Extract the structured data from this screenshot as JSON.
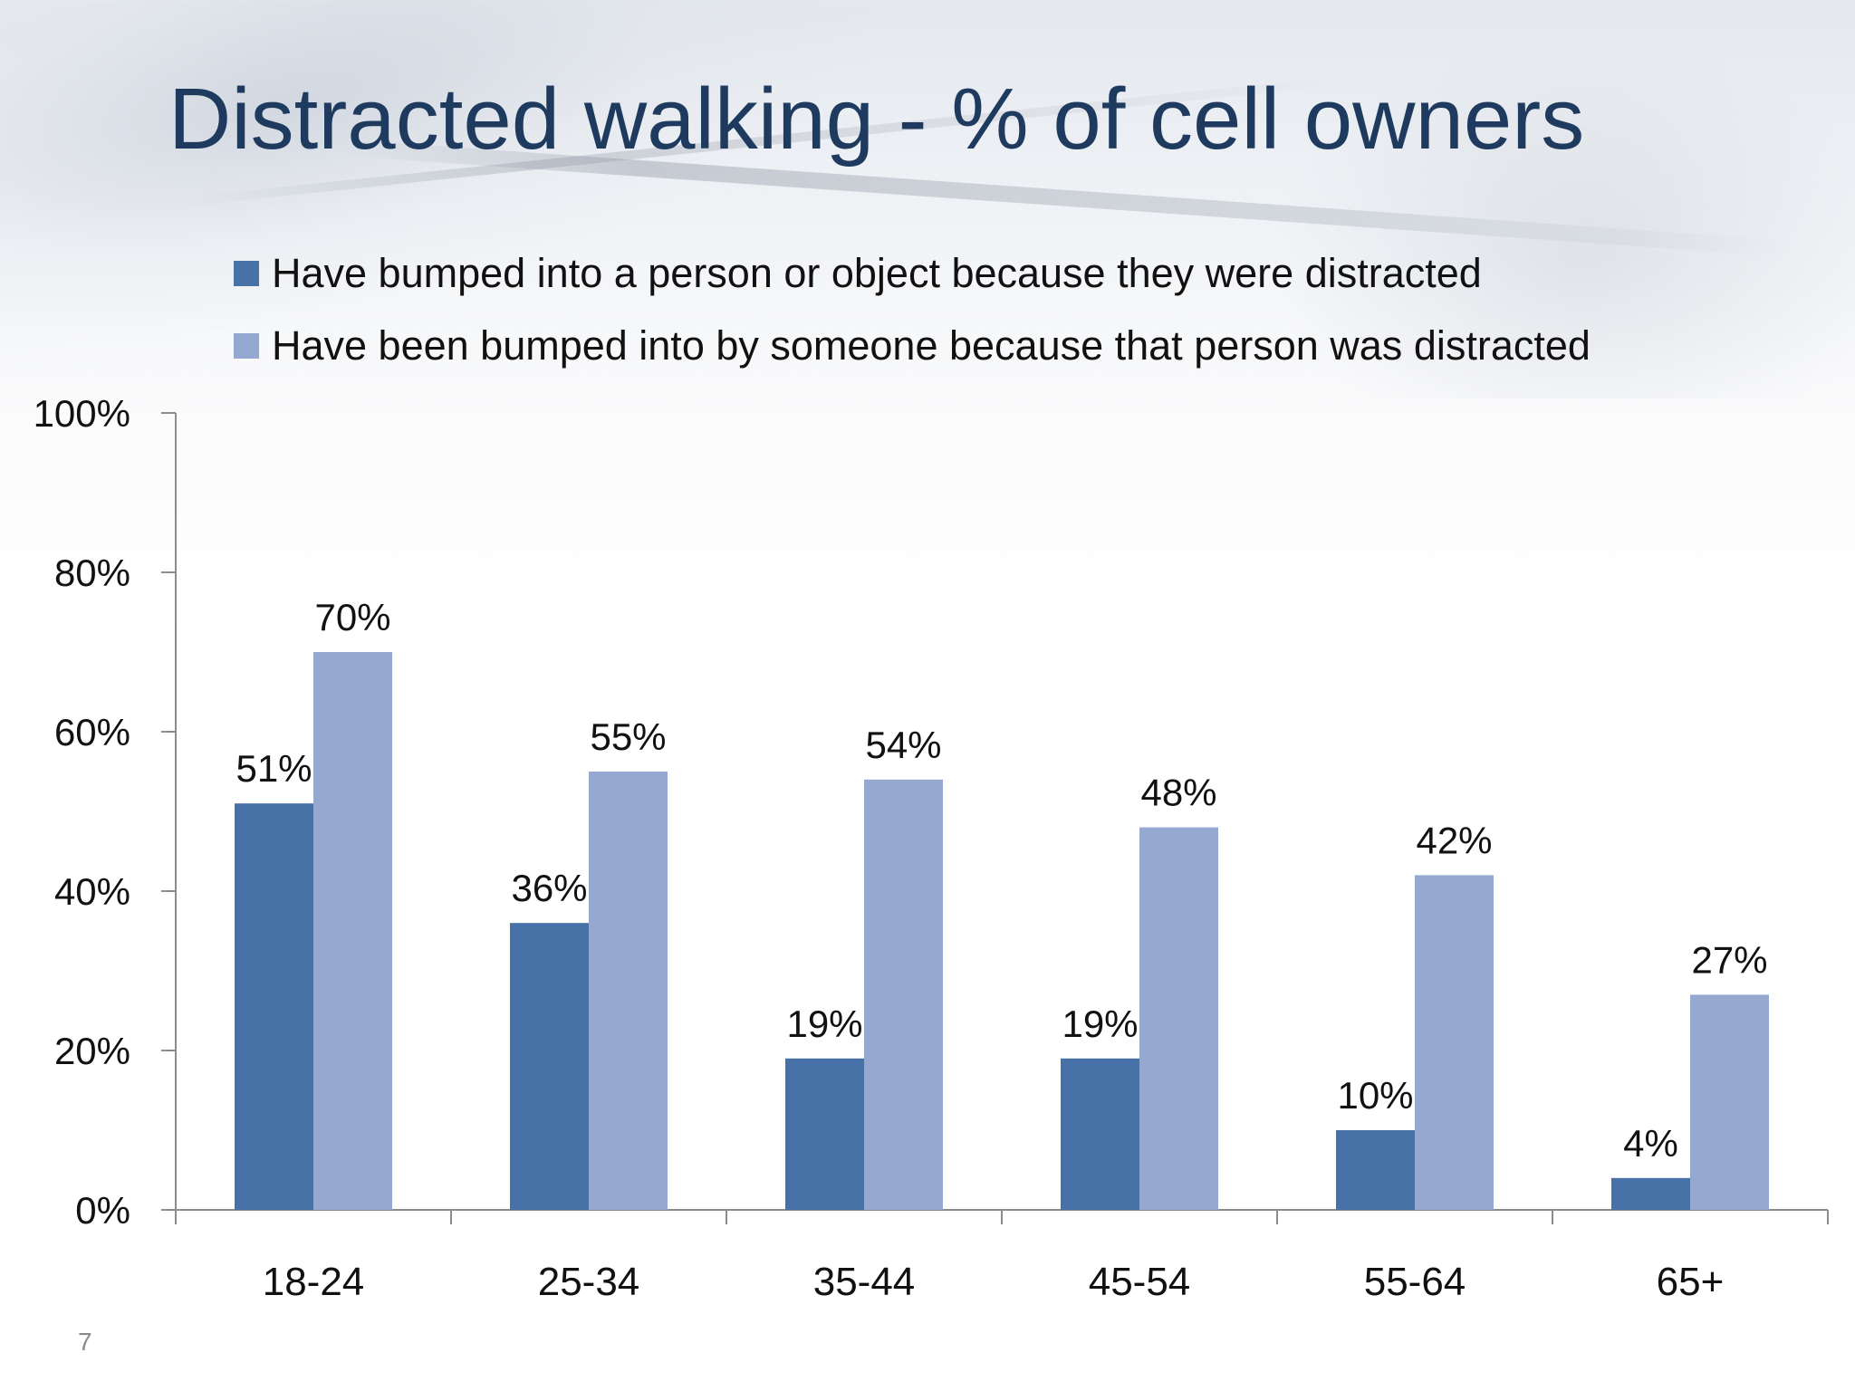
{
  "slide": {
    "title": "Distracted walking - % of cell owners",
    "number": "7"
  },
  "colors": {
    "title": "#1f3a5f",
    "series_dark": "#4672a8",
    "series_light": "#95a9d0",
    "axis": "#8c8c8c",
    "text": "#111111"
  },
  "chart_data": {
    "type": "bar",
    "categories": [
      "18-24",
      "25-34",
      "35-44",
      "45-54",
      "55-64",
      "65+"
    ],
    "series": [
      {
        "name": "Have bumped into a person or object because they were distracted",
        "values": [
          51,
          36,
          19,
          19,
          10,
          4
        ],
        "labels": [
          "51%",
          "36%",
          "19%",
          "19%",
          "10%",
          "4%"
        ],
        "color": "#4672a8"
      },
      {
        "name": "Have been bumped into by someone because that person was distracted",
        "values": [
          70,
          55,
          54,
          48,
          42,
          27
        ],
        "labels": [
          "70%",
          "55%",
          "54%",
          "48%",
          "42%",
          "27%"
        ],
        "color": "#95a9d0"
      }
    ],
    "ylim": [
      0,
      100
    ],
    "yticks": [
      "0%",
      "20%",
      "40%",
      "60%",
      "80%",
      "100%"
    ],
    "legend_position": "top",
    "grid": false
  }
}
